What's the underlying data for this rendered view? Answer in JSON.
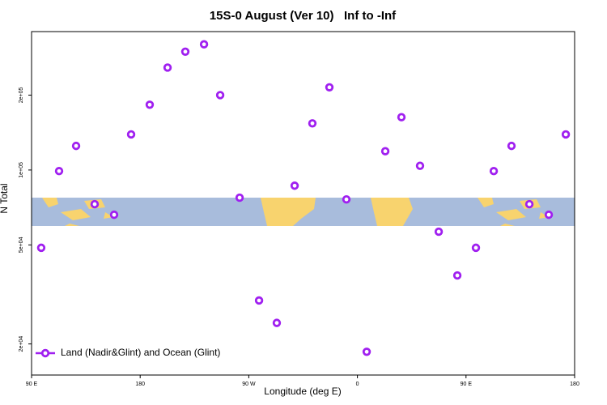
{
  "chart_data": {
    "type": "scatter",
    "title": "15S-0 August (Ver 10)   Inf to -Inf",
    "x_label": "Longitude (deg E)",
    "y_label": "N Total",
    "log_y": true,
    "legend": "bottom-left",
    "x": [
      98,
      112.8,
      126.9,
      142.3,
      158.4,
      172.5,
      187.9,
      202.7,
      217.4,
      232.9,
      246.3,
      262.4,
      278.5,
      293.2,
      308,
      322.7,
      336.8,
      350.9,
      367.7,
      383.1,
      396.5,
      411.9,
      427.4,
      442.8,
      458.2,
      473,
      487.7,
      502.5,
      518.6,
      532.7
    ],
    "series": [
      {
        "name": "Land (Nadir&Glint) and Ocean (Glint)",
        "color": "#a020f0",
        "values": [
          48700,
          99000,
          125000,
          72900,
          66100,
          139000,
          183000,
          258000,
          299000,
          320000,
          200000,
          77400,
          29900,
          24300,
          86500,
          154000,
          215000,
          76200,
          18600,
          119000,
          163000,
          104000,
          56500,
          37700,
          48700,
          99000,
          125000,
          72900,
          66100,
          139000
        ]
      }
    ],
    "xlim": [
      90,
      540
    ],
    "xticks": [
      {
        "value": 90,
        "label": "90 E"
      },
      180,
      {
        "value": 270,
        "label": "90 W"
      },
      {
        "value": 360,
        "label": "0"
      },
      {
        "value": 450,
        "label": "90 E"
      },
      {
        "value": 540,
        "label": "180"
      }
    ],
    "ylim": [
      15000,
      360000
    ],
    "yticks": [
      {
        "value": 20000,
        "label": "2e+04"
      },
      {
        "value": 50000,
        "label": "5e+04"
      },
      {
        "value": 100000,
        "label": "1e+05"
      },
      {
        "value": 200000,
        "label": "2e+05"
      }
    ]
  }
}
